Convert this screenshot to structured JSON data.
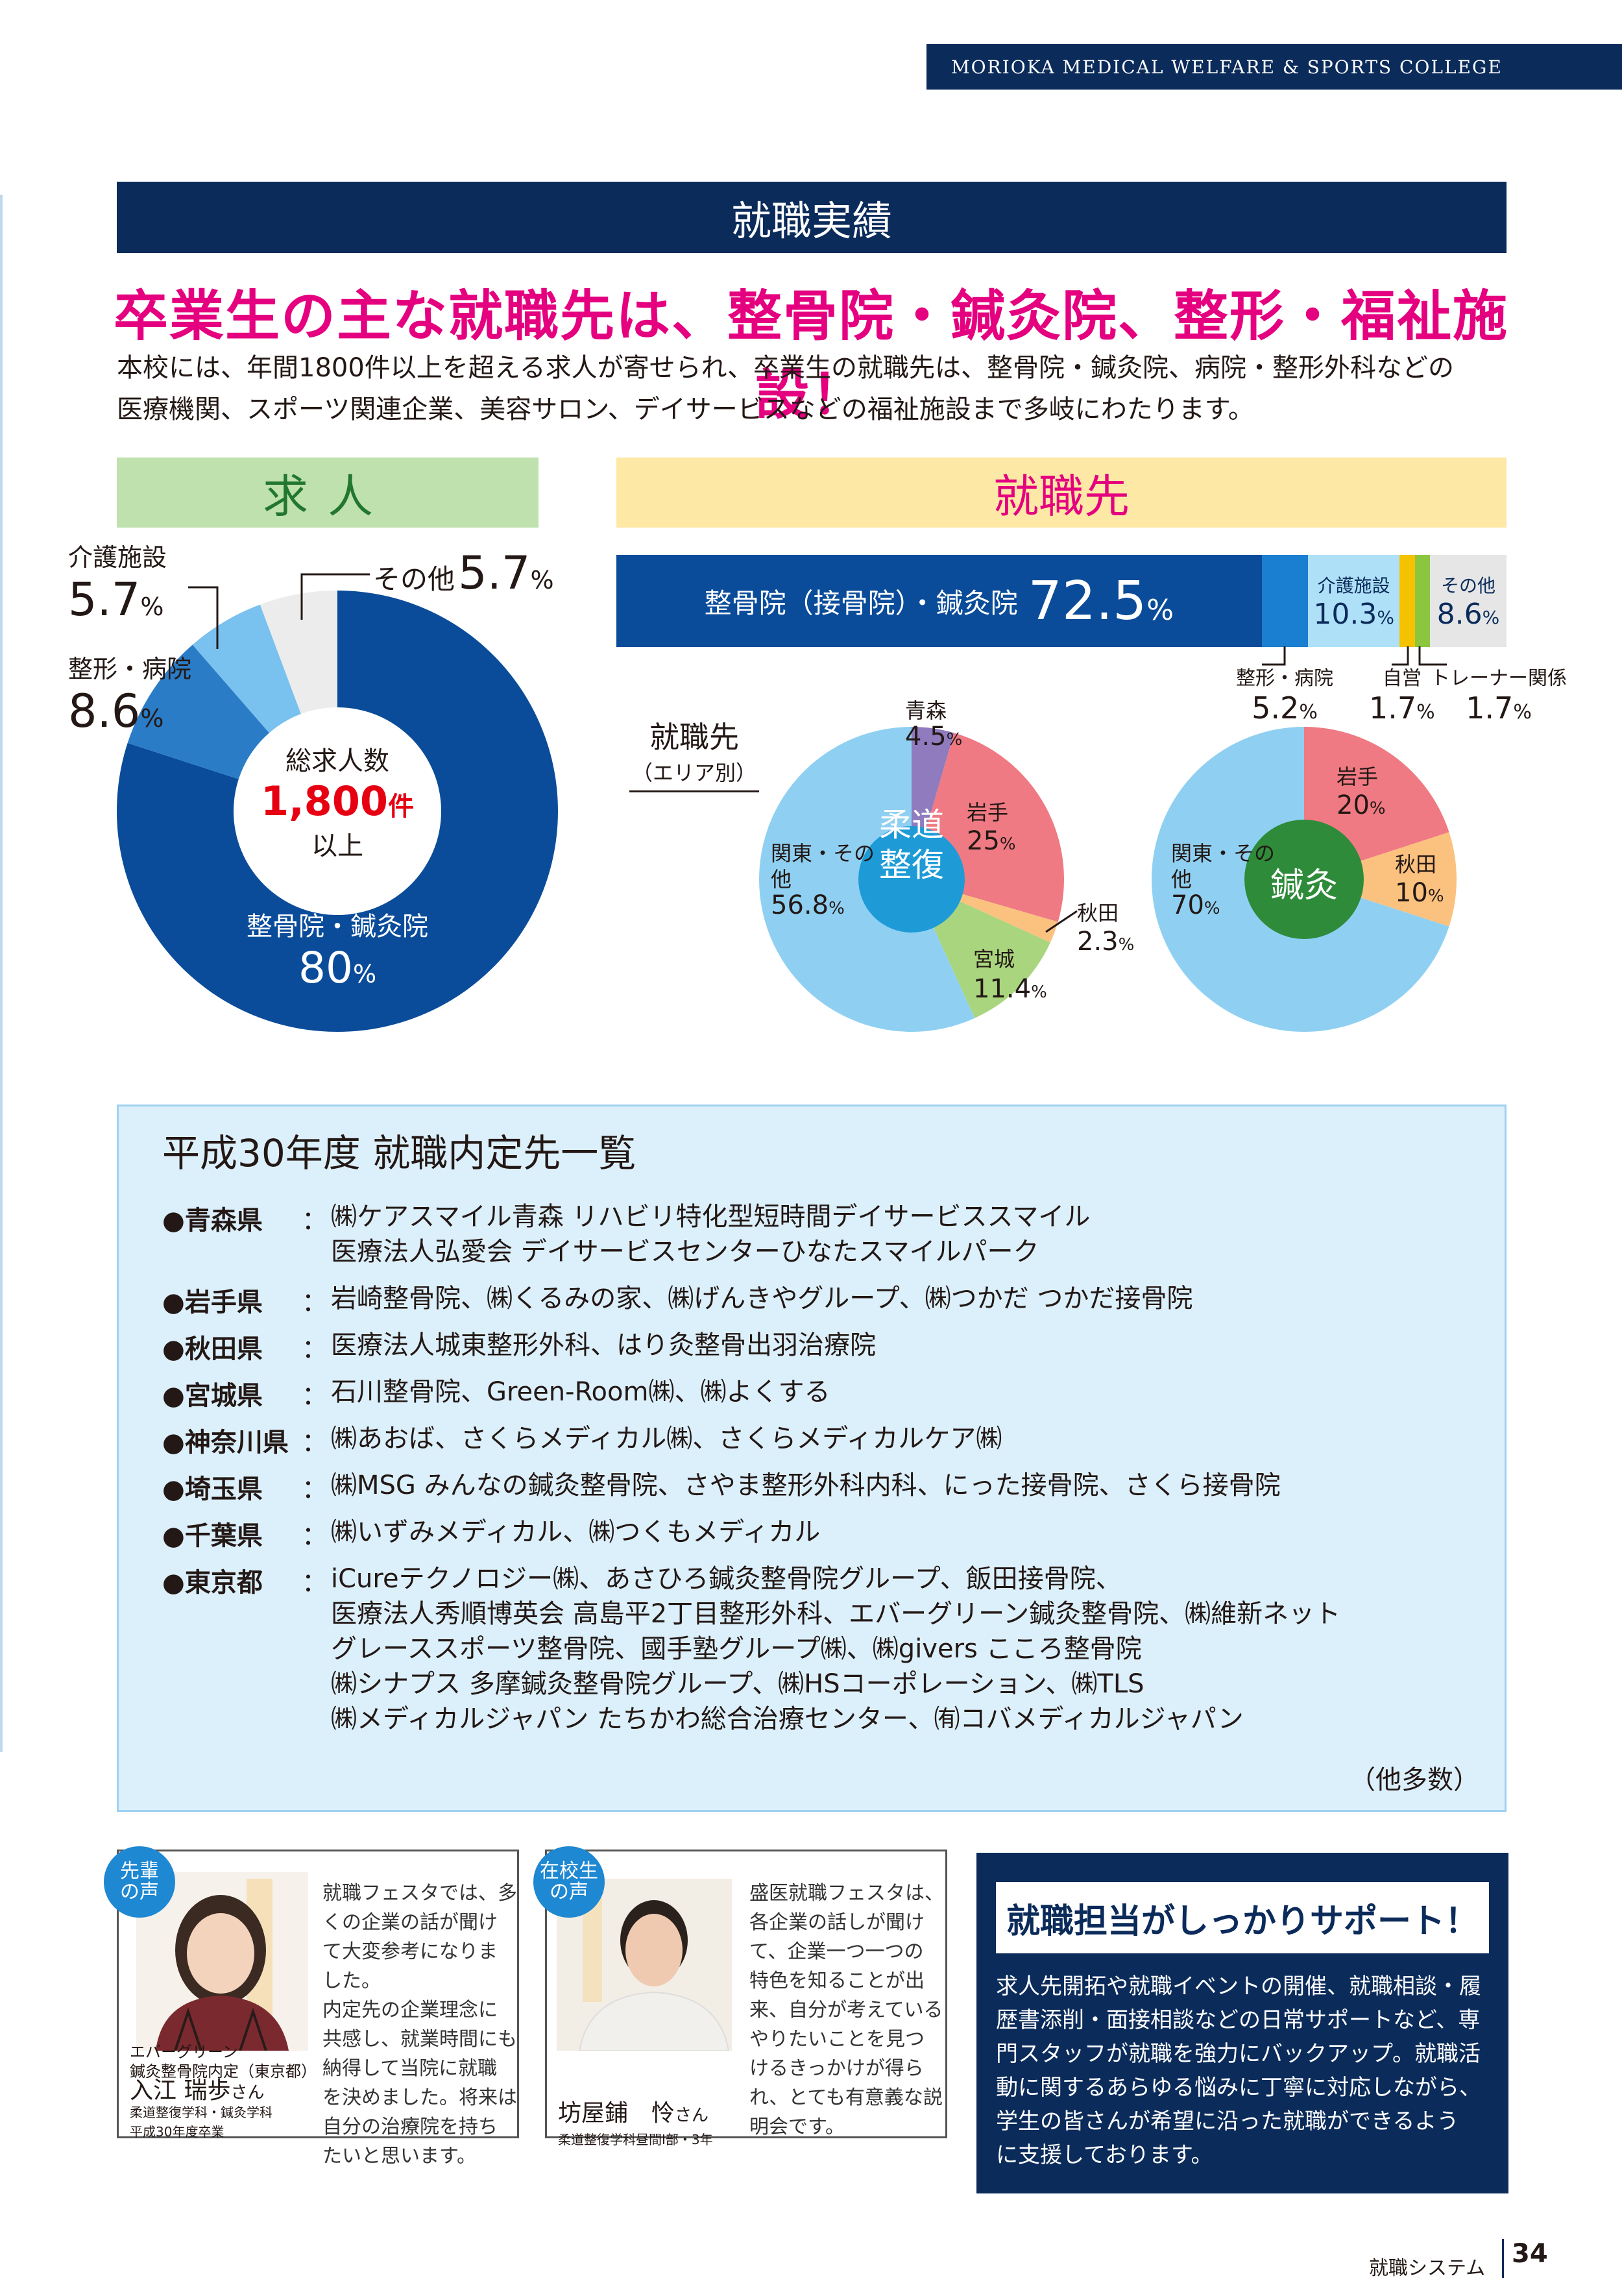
{
  "header": {
    "college": "MORIOKA MEDICAL WELFARE & SPORTS COLLEGE"
  },
  "section": {
    "title": "就職実績",
    "headline": "卒業生の主な就職先は、整骨院・鍼灸院、整形・福祉施設！",
    "intro": [
      "本校には、年間1800件以上を超える求人が寄せられ、卒業生の就職先は、整骨院・鍼灸院、病院・整形外科などの",
      "医療機関、スポーツ関連企業、美容サロン、デイサービスなどの福祉施設まで多岐にわたります。"
    ]
  },
  "jobs": {
    "tab": "求人",
    "center": {
      "line1": "総求人数",
      "number": "1,800",
      "unit": "件",
      "line2": "以上"
    },
    "slices": [
      {
        "label": "整骨院・鍼灸院",
        "value": "80",
        "pct": "%",
        "percent": 80,
        "color": "#0a4c9a"
      },
      {
        "label": "整形・病院",
        "value": "8.6",
        "pct": "%",
        "percent": 8.6,
        "color": "#2a7cc7"
      },
      {
        "label": "介護施設",
        "value": "5.7",
        "pct": "%",
        "percent": 5.7,
        "color": "#79c1ee"
      },
      {
        "label": "その他",
        "value": "5.7",
        "pct": "%",
        "percent": 5.7,
        "color": "#ececec"
      }
    ]
  },
  "employment": {
    "tab": "就職先",
    "bar": [
      {
        "label": "整骨院（接骨院）・鍼灸院",
        "value": "72.5",
        "pct": "%",
        "percent": 72.5,
        "color": "#0a4c9a"
      },
      {
        "label": "整形・病院",
        "value": "5.2",
        "pct": "%",
        "percent": 5.2,
        "color": "#1a7fd0"
      },
      {
        "label": "介護施設",
        "value": "10.3",
        "pct": "%",
        "percent": 10.3,
        "color": "#aee0f7"
      },
      {
        "label": "自営",
        "value": "1.7",
        "pct": "%",
        "percent": 1.7,
        "color": "#f5c200"
      },
      {
        "label": "トレーナー関係",
        "value": "1.7",
        "pct": "%",
        "percent": 1.7,
        "color": "#8cc63f"
      },
      {
        "label": "その他",
        "value": "8.6",
        "pct": "%",
        "percent": 8.6,
        "color": "#e6e6e6"
      }
    ],
    "area_label": "就職先",
    "area_sub": "（エリア別）",
    "judo": {
      "center": [
        "柔道",
        "整復"
      ],
      "slices": [
        {
          "label": "青森",
          "value": "4.5",
          "pct": "%",
          "percent": 4.5,
          "color": "#8f7bbd"
        },
        {
          "label": "岩手",
          "value": "25",
          "pct": "%",
          "percent": 25,
          "color": "#ef7a83"
        },
        {
          "label": "秋田",
          "value": "2.3",
          "pct": "%",
          "percent": 2.3,
          "color": "#fbc27f"
        },
        {
          "label": "宮城",
          "value": "11.4",
          "pct": "%",
          "percent": 11.4,
          "color": "#a9d57e"
        },
        {
          "label": "関東・その他",
          "value": "56.8",
          "pct": "%",
          "percent": 56.8,
          "color": "#8fd0f2"
        }
      ]
    },
    "acu": {
      "center": [
        "鍼灸"
      ],
      "slices": [
        {
          "label": "岩手",
          "value": "20",
          "pct": "%",
          "percent": 20,
          "color": "#ef7a83"
        },
        {
          "label": "秋田",
          "value": "10",
          "pct": "%",
          "percent": 10,
          "color": "#fbc27f"
        },
        {
          "label": "関東・その他",
          "value": "70",
          "pct": "%",
          "percent": 70,
          "color": "#8fd0f2"
        }
      ]
    }
  },
  "offers": {
    "title": "平成30年度 就職内定先一覧",
    "items": [
      {
        "pref": "●青森県",
        "lines": [
          "㈱ケアスマイル青森 リハビリ特化型短時間デイサービススマイル",
          "医療法人弘愛会 デイサービスセンターひなたスマイルパーク"
        ]
      },
      {
        "pref": "●岩手県",
        "lines": [
          "岩崎整骨院、㈱くるみの家、㈱げんきやグループ、㈱つかだ つかだ接骨院"
        ]
      },
      {
        "pref": "●秋田県",
        "lines": [
          "医療法人城東整形外科、はり灸整骨出羽治療院"
        ]
      },
      {
        "pref": "●宮城県",
        "lines": [
          "石川整骨院、Green-Room㈱、㈱よくする"
        ]
      },
      {
        "pref": "●神奈川県",
        "lines": [
          "㈱あおば、さくらメディカル㈱、さくらメディカルケア㈱"
        ]
      },
      {
        "pref": "●埼玉県",
        "lines": [
          "㈱MSG みんなの鍼灸整骨院、さやま整形外科内科、にった接骨院、さくら接骨院"
        ]
      },
      {
        "pref": "●千葉県",
        "lines": [
          "㈱いずみメディカル、㈱つくもメディカル"
        ]
      },
      {
        "pref": "●東京都",
        "lines": [
          "iCureテクノロジー㈱、あさひろ鍼灸整骨院グループ、飯田接骨院、",
          "医療法人秀順博英会 高島平2丁目整形外科、エバーグリーン鍼灸整骨院、㈱維新ネット",
          "グレーススポーツ整骨院、國手塾グループ㈱、㈱givers こころ整骨院",
          "㈱シナプス 多摩鍼灸整骨院グループ、㈱HSコーポレーション、㈱TLS",
          "㈱メディカルジャパン たちかわ総合治療センター、㈲コバメディカルジャパン"
        ]
      }
    ],
    "others": "（他多数）"
  },
  "voices": [
    {
      "badge": [
        "先輩",
        "の声"
      ],
      "text": [
        "就職フェスタでは、多",
        "くの企業の話が聞け",
        "て大変参考になりま",
        "した。",
        "内定先の企業理念に",
        "共感し、就業時間にも",
        "納得して当院に就職",
        "を決めました。将来は",
        "自分の治療院を持ち",
        "たいと思います。"
      ],
      "affiliation": [
        "エバーグリーン",
        "鍼灸整骨院内定（東京都）"
      ],
      "name": "入江 瑞歩",
      "honorific": "さん",
      "course": [
        "柔道整復学科・鍼灸学科",
        "平成30年度卒業"
      ]
    },
    {
      "badge": [
        "在校生",
        "の声"
      ],
      "text": [
        "盛医就職フェスタは、",
        "各企業の話しが聞け",
        "て、企業一つ一つの",
        "特色を知ることが出",
        "来、自分が考えている",
        "やりたいことを見つ",
        "けるきっかけが得ら",
        "れ、とても有意義な説",
        "明会です。"
      ],
      "name": "坊屋鋪　怜",
      "honorific": "さん",
      "course": [
        "柔道整復学科昼間Ⅰ部・3年"
      ]
    }
  ],
  "support": {
    "title": "就職担当がしっかりサポート！",
    "text": [
      "求人先開拓や就職イベントの開催、就職相談・履",
      "歴書添削・面接相談などの日常サポートなど、専",
      "門スタッフが就職を強力にバックアップ。就職活",
      "動に関するあらゆる悩みに丁寧に対応しながら、",
      "学生の皆さんが希望に沿った就職ができるよう",
      "に支援しております。"
    ]
  },
  "footer": {
    "section": "就職システム",
    "page": "34"
  }
}
